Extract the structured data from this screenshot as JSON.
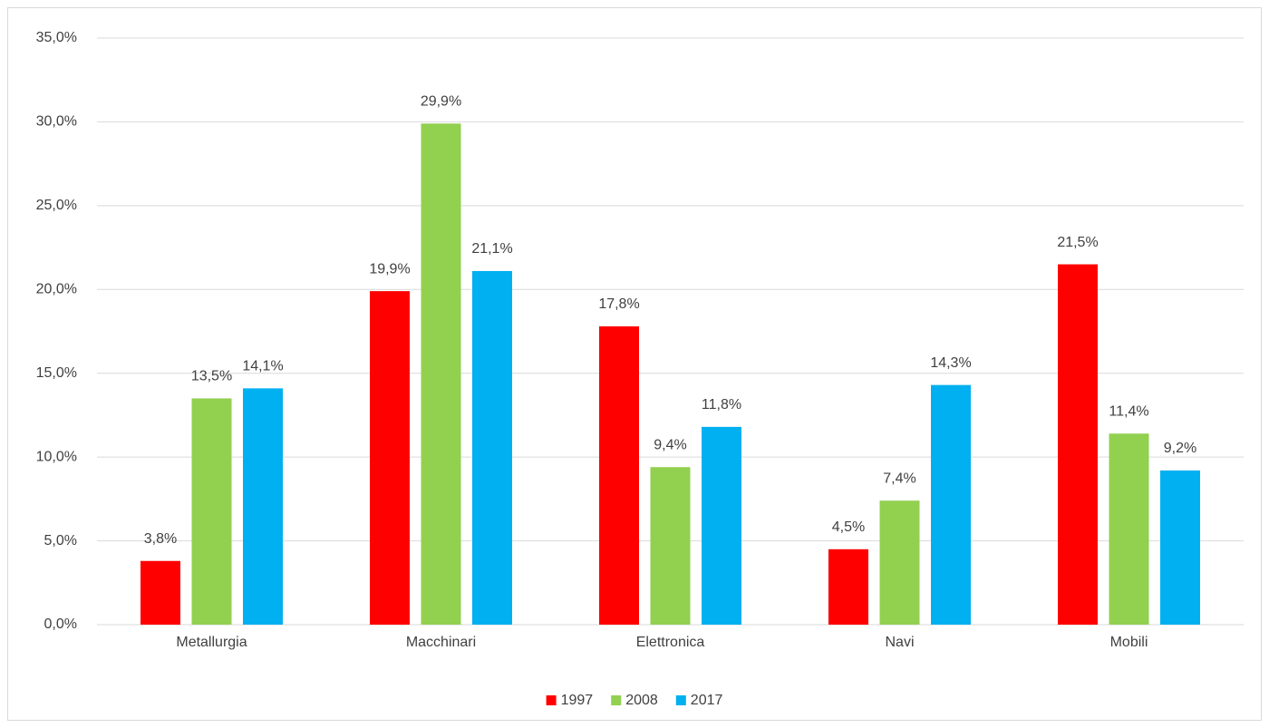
{
  "chart_data": {
    "type": "bar",
    "categories": [
      "Metallurgia",
      "Macchinari",
      "Elettronica",
      "Navi",
      "Mobili"
    ],
    "series": [
      {
        "name": "1997",
        "color": "#ff0000",
        "values": [
          3.8,
          19.9,
          17.8,
          4.5,
          21.5
        ],
        "value_labels": [
          "3,8%",
          "19,9%",
          "17,8%",
          "4,5%",
          "21,5%"
        ]
      },
      {
        "name": "2008",
        "color": "#92d050",
        "values": [
          13.5,
          29.9,
          9.4,
          7.4,
          11.4
        ],
        "value_labels": [
          "13,5%",
          "29,9%",
          "9,4%",
          "7,4%",
          "11,4%"
        ]
      },
      {
        "name": "2017",
        "color": "#00b0f0",
        "values": [
          14.1,
          21.1,
          11.8,
          14.3,
          9.2
        ],
        "value_labels": [
          "14,1%",
          "21,1%",
          "11,8%",
          "14,3%",
          "9,2%"
        ]
      }
    ],
    "ylim": [
      0,
      35
    ],
    "yticks": [
      {
        "value": 0,
        "label": "0,0%"
      },
      {
        "value": 5,
        "label": "5,0%"
      },
      {
        "value": 10,
        "label": "10,0%"
      },
      {
        "value": 15,
        "label": "15,0%"
      },
      {
        "value": 20,
        "label": "20,0%"
      },
      {
        "value": 25,
        "label": "25,0%"
      },
      {
        "value": 30,
        "label": "30,0%"
      },
      {
        "value": 35,
        "label": "35,0%"
      }
    ],
    "grid": true,
    "legend": "bottom"
  }
}
